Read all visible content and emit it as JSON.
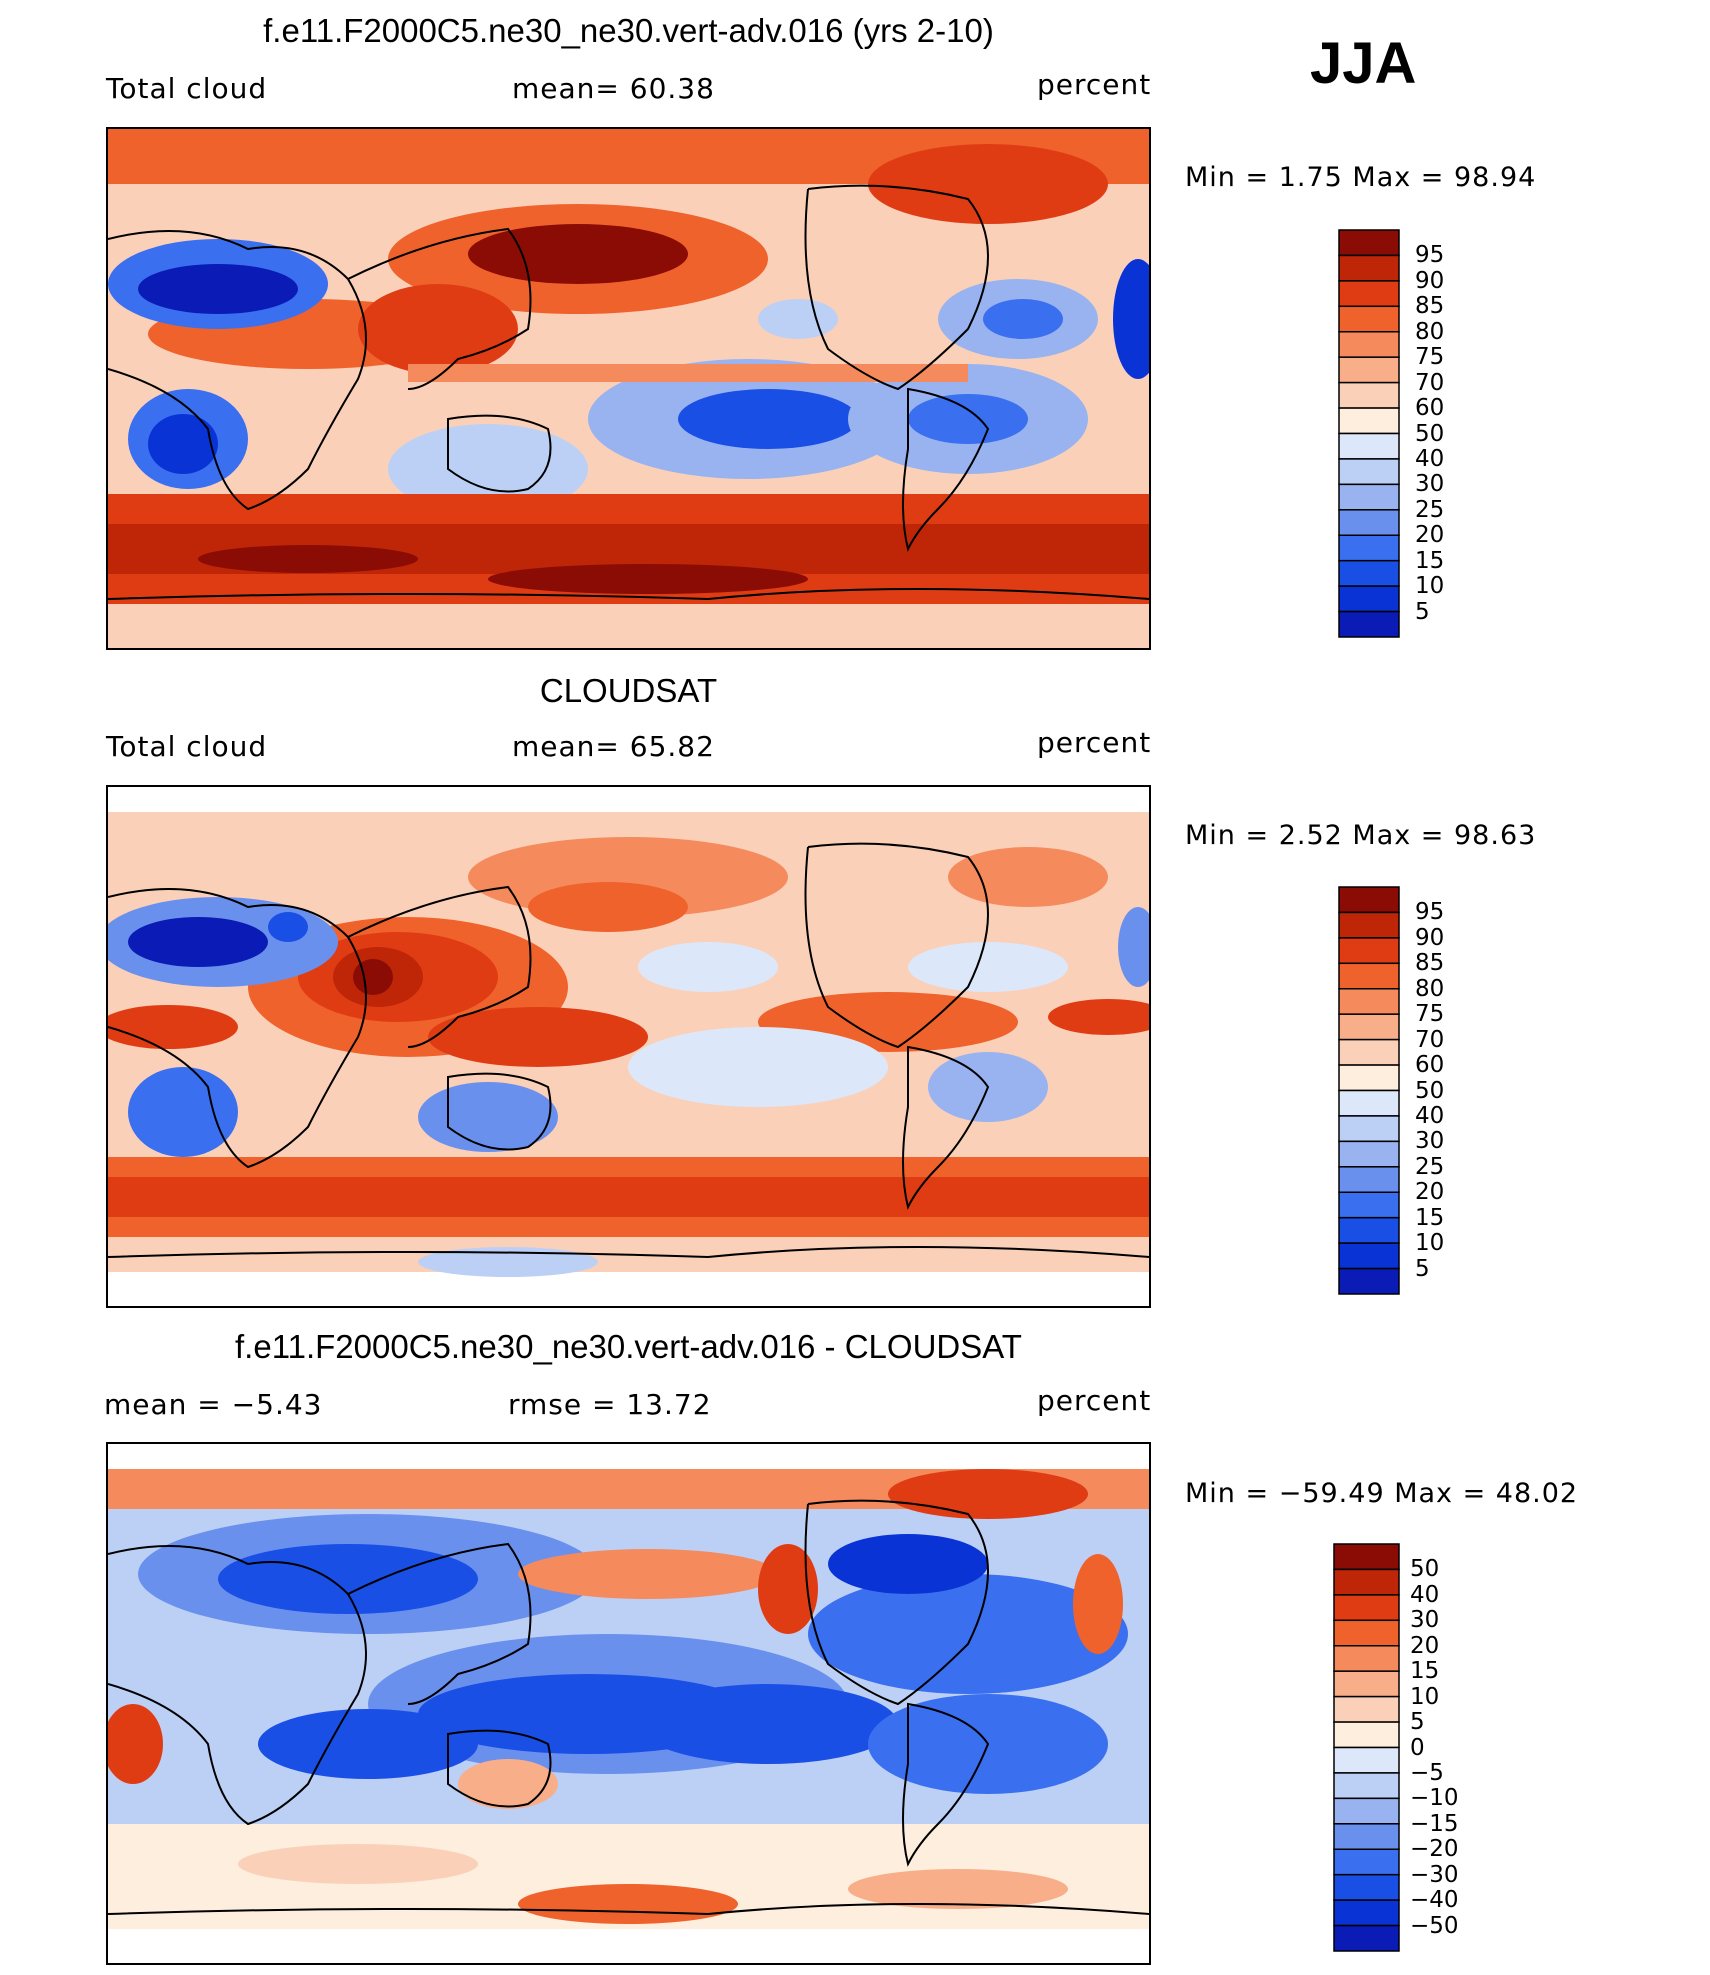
{
  "season_label": "JJA",
  "colors": {
    "seq_scale": [
      "#0a0a8a",
      "#0b1bb5",
      "#0a33d6",
      "#1a4fe6",
      "#3a6ff0",
      "#6a90ee",
      "#98b3f0",
      "#bcd0f5",
      "#dde7fa",
      "#fdeedd",
      "#fbd0b8",
      "#f9ae8a",
      "#f58a5c",
      "#f0622c",
      "#e03c14",
      "#bf2608",
      "#8b0c04"
    ],
    "div_scale": [
      "#0a0a8a",
      "#0b1bb5",
      "#0a33d6",
      "#1a4fe6",
      "#3a6ff0",
      "#6a90ee",
      "#98b3f0",
      "#bcd0f5",
      "#dde7fa",
      "#fdeedd",
      "#fbd0b8",
      "#f9ae8a",
      "#f58a5c",
      "#f0622c",
      "#e03c14",
      "#bf2608",
      "#8b0c04"
    ]
  },
  "panels": [
    {
      "title": "f.e11.F2000C5.ne30_ne30.vert-adv.016 (yrs 2-10)",
      "left_label": "Total cloud",
      "center_label": "mean=  60.38",
      "right_label": "percent",
      "minmax": "Min =    1.75 Max =   98.94",
      "colorbar_levels": [
        "95",
        "90",
        "85",
        "80",
        "75",
        "70",
        "60",
        "50",
        "40",
        "30",
        "25",
        "20",
        "15",
        "10",
        "5"
      ]
    },
    {
      "title": "CLOUDSAT",
      "left_label": "Total cloud",
      "center_label": "mean=  65.82",
      "right_label": "percent",
      "minmax": "Min =    2.52 Max =   98.63",
      "colorbar_levels": [
        "95",
        "90",
        "85",
        "80",
        "75",
        "70",
        "60",
        "50",
        "40",
        "30",
        "25",
        "20",
        "15",
        "10",
        "5"
      ]
    },
    {
      "title": "f.e11.F2000C5.ne30_ne30.vert-adv.016 - CLOUDSAT",
      "left_label": "mean =  −5.43",
      "center_label": "rmse =   13.72",
      "right_label": "percent",
      "minmax": "Min = −59.49 Max =   48.02",
      "colorbar_levels": [
        "50",
        "40",
        "30",
        "20",
        "15",
        "10",
        "5",
        "0",
        "−5",
        "−10",
        "−15",
        "−20",
        "−30",
        "−40",
        "−50"
      ]
    }
  ]
}
